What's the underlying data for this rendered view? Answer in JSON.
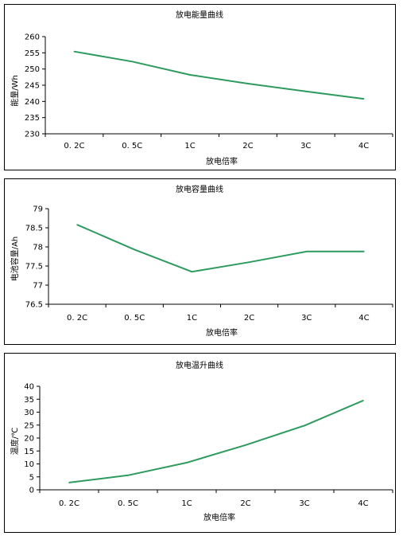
{
  "chart_data": [
    {
      "type": "line",
      "title": "放电能量曲线",
      "xlabel": "放电倍率",
      "ylabel": "能量/Wh",
      "categories": [
        "0. 2C",
        "0. 5C",
        "1C",
        "2C",
        "3C",
        "4C"
      ],
      "yticks": [
        "230",
        "235",
        "240",
        "245",
        "250",
        "255",
        "260"
      ],
      "ylim": [
        230,
        260
      ],
      "series": [
        {
          "values": [
            255.4,
            252.3,
            248.2,
            245.5,
            243.1,
            240.8
          ]
        }
      ],
      "grid": false,
      "color": "#2e9b5e"
    },
    {
      "type": "line",
      "title": "放电容量曲线",
      "xlabel": "放电倍率",
      "ylabel": "电池容量/Ah",
      "categories": [
        "0. 2C",
        "0. 5C",
        "1C",
        "2C",
        "3C",
        "4C"
      ],
      "yticks": [
        "76.5",
        "77",
        "77.5",
        "78",
        "78.5",
        "79"
      ],
      "ylim": [
        76.5,
        79
      ],
      "series": [
        {
          "values": [
            78.58,
            77.93,
            77.35,
            77.6,
            77.88,
            77.88
          ]
        }
      ],
      "grid": false,
      "color": "#2e9b5e"
    },
    {
      "type": "line",
      "title": "放电温升曲线",
      "xlabel": "放电倍率",
      "ylabel": "温度/℃",
      "categories": [
        "0. 2C",
        "0. 5C",
        "1C",
        "2C",
        "3C",
        "4C"
      ],
      "yticks": [
        "0",
        "5",
        "10",
        "15",
        "20",
        "25",
        "30",
        "35",
        "40"
      ],
      "ylim": [
        0,
        40
      ],
      "series": [
        {
          "values": [
            2.8,
            5.6,
            10.5,
            17.3,
            24.8,
            34.5
          ]
        }
      ],
      "grid": false,
      "color": "#2e9b5e"
    }
  ]
}
